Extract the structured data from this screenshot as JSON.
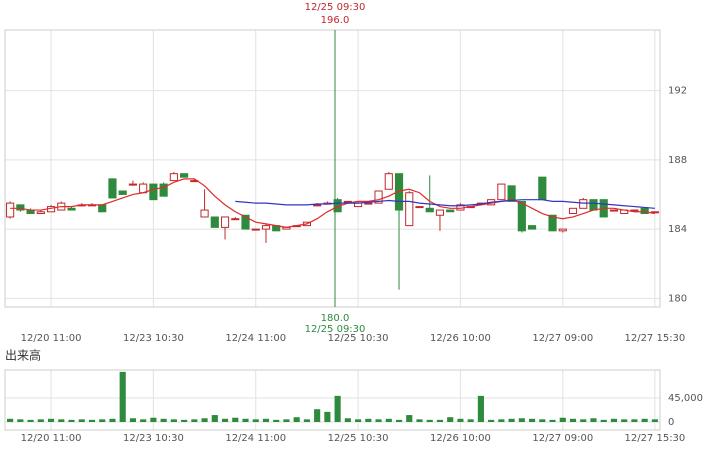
{
  "chart_data": [
    {
      "type": "candlestick",
      "categories": [
        null,
        null,
        null,
        null,
        "12/20 11:00",
        null,
        null,
        null,
        null,
        null,
        null,
        null,
        null,
        null,
        "12/23 10:30",
        null,
        null,
        null,
        null,
        null,
        null,
        null,
        null,
        null,
        "12/24 11:00",
        null,
        null,
        null,
        null,
        null,
        null,
        null,
        null,
        null,
        "12/25 10:30",
        null,
        null,
        null,
        null,
        null,
        null,
        null,
        null,
        null,
        "12/26 10:00",
        null,
        null,
        null,
        null,
        null,
        null,
        null,
        null,
        null,
        "12/27 09:00",
        null,
        null,
        null,
        null,
        null,
        null,
        null,
        null,
        "12/27 15:30"
      ],
      "open": [
        184.7,
        185.4,
        185.1,
        184.9,
        185.0,
        185.1,
        185.2,
        185.4,
        185.4,
        185.4,
        186.9,
        186.2,
        186.6,
        186.1,
        186.6,
        186.6,
        186.8,
        187.2,
        186.8,
        184.7,
        184.7,
        184.1,
        184.6,
        184.8,
        184.0,
        184.0,
        184.2,
        184.0,
        184.2,
        184.2,
        185.4,
        185.5,
        185.7,
        185.6,
        185.3,
        185.5,
        185.5,
        186.3,
        187.2,
        184.2,
        185.3,
        185.2,
        184.8,
        185.1,
        185.1,
        185.3,
        185.5,
        185.4,
        185.7,
        186.5,
        185.6,
        184.2,
        187.0,
        184.8,
        183.9,
        184.9,
        185.2,
        185.7,
        185.7,
        185.1,
        184.9,
        185.1,
        185.2,
        185.0
      ],
      "high": [
        185.6,
        185.4,
        185.2,
        185.1,
        185.4,
        185.6,
        185.3,
        185.5,
        185.5,
        185.4,
        186.9,
        186.2,
        186.8,
        186.7,
        186.6,
        186.7,
        187.3,
        187.2,
        186.9,
        186.3,
        184.7,
        184.7,
        184.7,
        184.8,
        184.0,
        184.3,
        184.2,
        184.1,
        184.2,
        184.4,
        185.5,
        185.6,
        185.8,
        185.6,
        185.6,
        185.5,
        186.2,
        187.3,
        187.2,
        186.2,
        185.3,
        187.1,
        185.1,
        185.1,
        185.5,
        185.3,
        185.5,
        185.7,
        186.6,
        186.5,
        185.6,
        184.2,
        187.0,
        184.8,
        184.0,
        185.2,
        185.8,
        185.7,
        185.7,
        185.1,
        185.1,
        185.1,
        185.2,
        185.0
      ],
      "low": [
        184.6,
        185.0,
        184.9,
        184.9,
        185.0,
        185.1,
        185.1,
        185.3,
        185.4,
        185.0,
        185.8,
        186.0,
        186.5,
        186.1,
        185.7,
        185.9,
        186.8,
        187.0,
        186.8,
        184.7,
        184.1,
        183.4,
        184.6,
        184.0,
        184.0,
        183.2,
        183.9,
        184.0,
        184.2,
        184.2,
        185.4,
        185.5,
        185.0,
        185.6,
        185.3,
        185.5,
        185.5,
        186.3,
        180.5,
        184.2,
        185.3,
        185.0,
        183.9,
        185.0,
        185.1,
        185.3,
        185.5,
        185.4,
        185.7,
        185.6,
        183.8,
        184.0,
        185.7,
        183.9,
        183.8,
        184.9,
        185.2,
        185.1,
        184.7,
        185.1,
        184.9,
        185.1,
        184.9,
        185.0
      ],
      "close": [
        185.5,
        185.1,
        184.9,
        185.0,
        185.3,
        185.5,
        185.1,
        185.4,
        185.4,
        185.0,
        185.8,
        186.0,
        186.6,
        186.6,
        185.7,
        185.9,
        187.2,
        187.0,
        186.8,
        185.1,
        184.1,
        184.7,
        184.6,
        184.0,
        184.0,
        184.2,
        183.9,
        184.1,
        184.2,
        184.4,
        185.4,
        185.5,
        185.0,
        185.6,
        185.5,
        185.5,
        186.2,
        187.2,
        185.1,
        186.1,
        185.3,
        185.0,
        185.1,
        185.0,
        185.4,
        185.3,
        185.5,
        185.7,
        186.6,
        185.6,
        183.9,
        184.0,
        185.7,
        183.9,
        184.0,
        185.2,
        185.7,
        185.1,
        184.7,
        185.1,
        185.1,
        185.1,
        184.9,
        185.0
      ],
      "up_color": "#c0282d",
      "down_color": "#2e8b3e",
      "lines": [
        {
          "color": "#e02a2a",
          "values": [
            185.2,
            185.2,
            185.1,
            185.1,
            185.2,
            185.3,
            185.3,
            185.4,
            185.4,
            185.4,
            185.6,
            185.8,
            186.0,
            186.1,
            186.3,
            186.4,
            186.7,
            186.9,
            186.9,
            186.5,
            185.9,
            185.4,
            185.0,
            184.7,
            184.4,
            184.3,
            184.2,
            184.1,
            184.2,
            184.3,
            184.6,
            185.0,
            185.3,
            185.5,
            185.6,
            185.6,
            185.7,
            185.9,
            186.2,
            186.3,
            186.1,
            185.6,
            185.3,
            185.2,
            185.2,
            185.3,
            185.4,
            185.5,
            185.6,
            185.7,
            185.5,
            185.2,
            184.9,
            184.7,
            184.6,
            184.7,
            184.9,
            185.1,
            185.2,
            185.2,
            185.1,
            185.0,
            185.0,
            184.9
          ]
        },
        {
          "color": "#3434c4",
          "values": [
            null,
            null,
            null,
            null,
            null,
            null,
            null,
            null,
            null,
            null,
            null,
            null,
            null,
            null,
            null,
            null,
            null,
            null,
            null,
            null,
            null,
            null,
            185.6,
            185.55,
            185.5,
            185.5,
            185.45,
            185.4,
            185.4,
            185.4,
            185.45,
            185.45,
            185.5,
            185.5,
            185.5,
            185.55,
            185.6,
            185.65,
            185.6,
            185.6,
            185.5,
            185.45,
            185.4,
            185.35,
            185.35,
            185.4,
            185.45,
            185.55,
            185.6,
            185.65,
            185.7,
            185.7,
            185.7,
            185.6,
            185.6,
            185.55,
            185.5,
            185.5,
            185.45,
            185.4,
            185.35,
            185.3,
            185.25,
            185.2
          ]
        }
      ],
      "ylim": [
        179.5,
        195.5
      ],
      "yticks": [
        180,
        184,
        188,
        192
      ],
      "grid": true,
      "crosshair_labels": [
        "12/25 09:30",
        "196.0",
        "180.0",
        "12/25 09:30"
      ]
    },
    {
      "type": "bar",
      "title": "出来高",
      "categories": [
        null,
        null,
        null,
        null,
        "12/20 11:00",
        null,
        null,
        null,
        null,
        null,
        null,
        null,
        null,
        null,
        "12/23 10:30",
        null,
        null,
        null,
        null,
        null,
        null,
        null,
        null,
        null,
        "12/24 11:00",
        null,
        null,
        null,
        null,
        null,
        null,
        null,
        null,
        null,
        "12/25 10:30",
        null,
        null,
        null,
        null,
        null,
        null,
        null,
        null,
        null,
        "12/26 10:00",
        null,
        null,
        null,
        null,
        null,
        null,
        null,
        null,
        null,
        "12/27 09:00",
        null,
        null,
        null,
        null,
        null,
        null,
        null,
        null,
        "12/27 15:30"
      ],
      "values": [
        6000,
        5000,
        4000,
        5000,
        6000,
        5000,
        4000,
        5000,
        4000,
        5000,
        6000,
        94000,
        7000,
        5000,
        8000,
        6000,
        5000,
        4000,
        5000,
        7000,
        13000,
        6000,
        8000,
        6000,
        5000,
        6000,
        4000,
        5000,
        9000,
        5000,
        24000,
        19000,
        49000,
        7000,
        5000,
        6000,
        5000,
        6000,
        4000,
        13000,
        5000,
        4000,
        4000,
        9000,
        6000,
        5000,
        49000,
        4000,
        5000,
        6000,
        7000,
        6000,
        5000,
        4000,
        8000,
        6000,
        5000,
        7000,
        4000,
        6000,
        5000,
        5000,
        6000,
        5000
      ],
      "color": "#2e8b3e",
      "ylim": [
        -15000,
        97500
      ],
      "yticks": [
        0,
        {
          "value": 45000,
          "label": "45,000"
        }
      ],
      "grid": true
    }
  ]
}
